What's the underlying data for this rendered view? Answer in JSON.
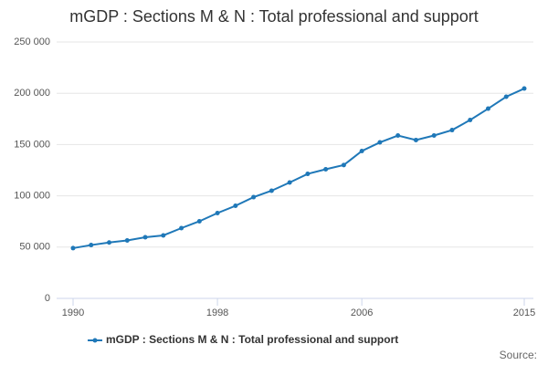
{
  "chart_data": {
    "type": "line",
    "title": "mGDP : Sections M & N : Total professional and support",
    "x": [
      1990,
      1991,
      1992,
      1993,
      1994,
      1995,
      1996,
      1997,
      1998,
      1999,
      2000,
      2001,
      2002,
      2003,
      2004,
      2005,
      2006,
      2007,
      2008,
      2009,
      2010,
      2011,
      2012,
      2013,
      2014,
      2015
    ],
    "series": [
      {
        "name": "mGDP : Sections M & N : Total professional and support",
        "color": "#1f78b8",
        "values": [
          49000,
          52000,
          54500,
          56500,
          59600,
          61400,
          68500,
          75200,
          83200,
          90300,
          98700,
          105000,
          113000,
          121400,
          125900,
          130000,
          143700,
          152100,
          158800,
          154400,
          158800,
          164100,
          173900,
          185000,
          196600,
          204600
        ]
      }
    ],
    "xlim": [
      1990,
      2015
    ],
    "xticks": [
      1990,
      1998,
      2006,
      2015
    ],
    "ylim": [
      0,
      250000
    ],
    "yticks": [
      0,
      {
        "value": 50000,
        "label": "50 000"
      },
      {
        "value": 100000,
        "label": "100 000"
      },
      {
        "value": 150000,
        "label": "150 000"
      },
      {
        "value": 200000,
        "label": "200 000"
      },
      {
        "value": 250000,
        "label": "250 000"
      }
    ],
    "grid": true,
    "source": "Source:"
  }
}
